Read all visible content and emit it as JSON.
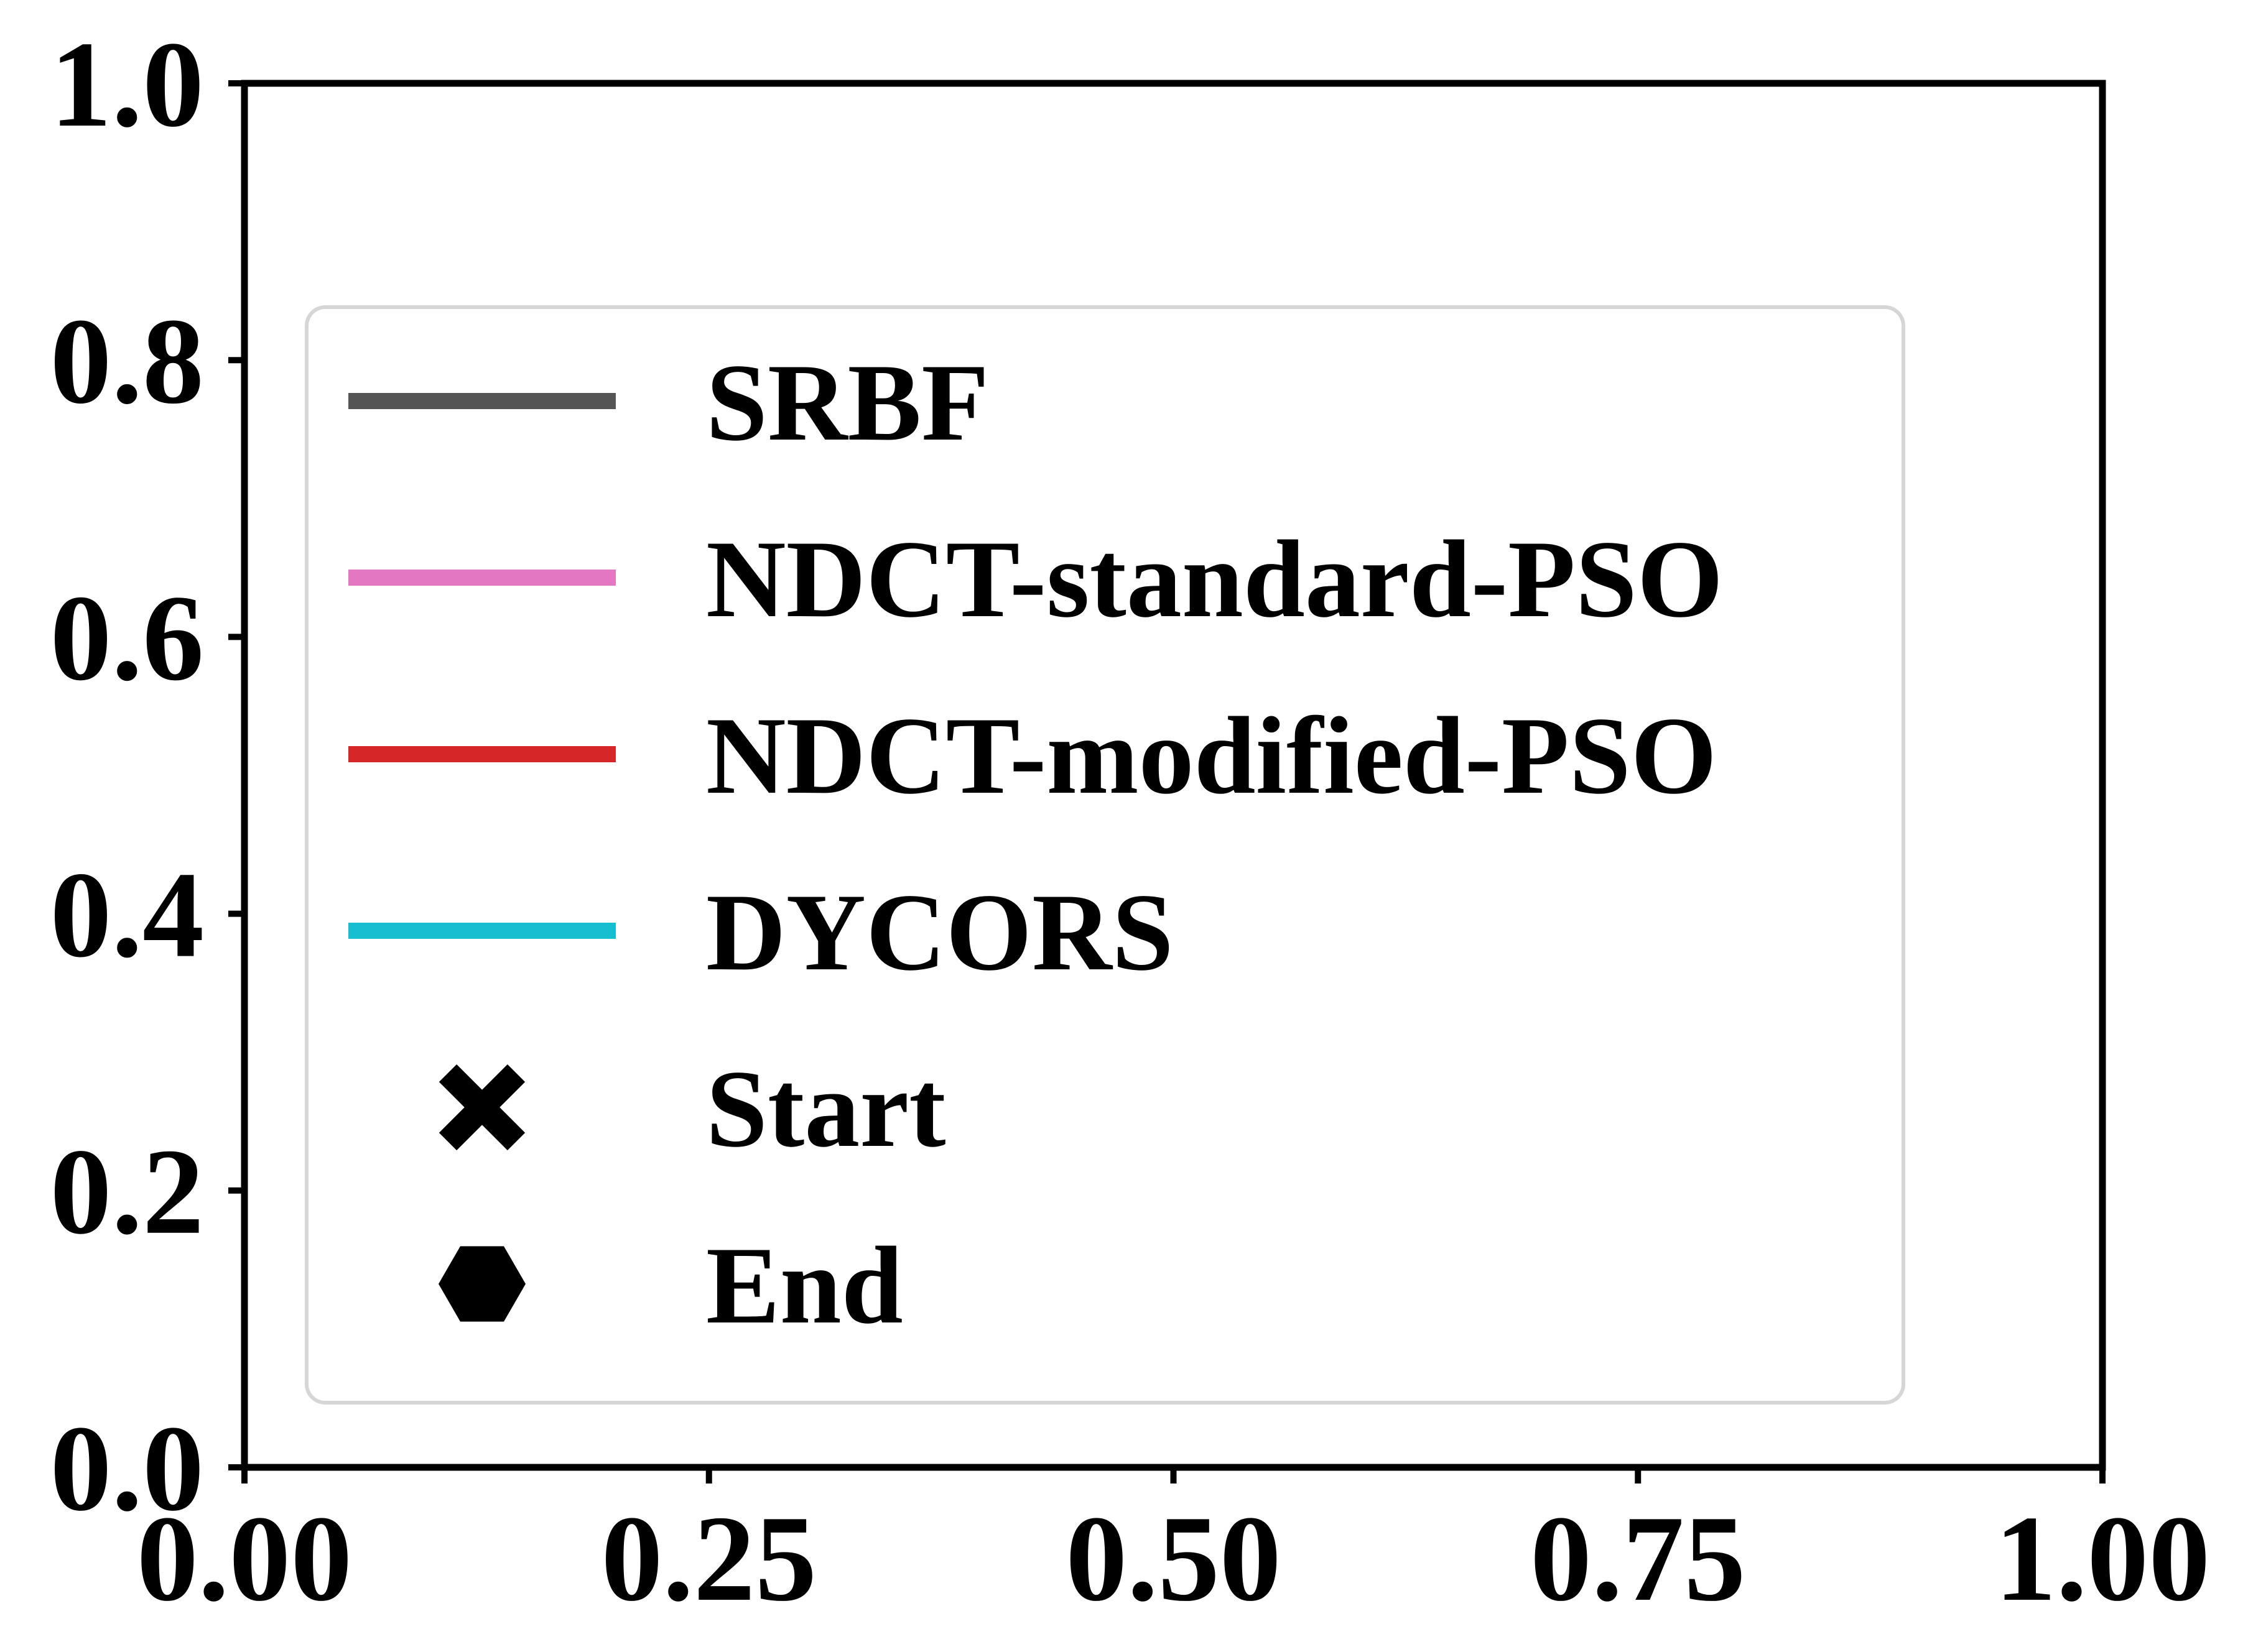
{
  "chart_data": {
    "type": "line",
    "title": "",
    "xlabel": "",
    "ylabel": "",
    "xlim": [
      0.0,
      1.0
    ],
    "ylim": [
      0.0,
      1.0
    ],
    "x_ticks": [
      "0.00",
      "0.25",
      "0.50",
      "0.75",
      "1.00"
    ],
    "y_ticks": [
      "0.0",
      "0.2",
      "0.4",
      "0.6",
      "0.8",
      "1.0"
    ],
    "x_tick_values": [
      0.0,
      0.25,
      0.5,
      0.75,
      1.0
    ],
    "y_tick_values": [
      0.0,
      0.2,
      0.4,
      0.6,
      0.8,
      1.0
    ],
    "grid": false,
    "legend_position": "center",
    "series": [
      {
        "name": "SRBF",
        "color": "#555555",
        "x": [],
        "y": []
      },
      {
        "name": "NDCT-standard-PSO",
        "color": "#e377c2",
        "x": [],
        "y": []
      },
      {
        "name": "NDCT-modified-PSO",
        "color": "#d62728",
        "x": [],
        "y": []
      },
      {
        "name": "DYCORS",
        "color": "#17becf",
        "x": [],
        "y": []
      }
    ],
    "markers": [
      {
        "name": "Start",
        "icon": "x-marker-icon",
        "color": "#000000"
      },
      {
        "name": "End",
        "icon": "hexagon-marker-icon",
        "color": "#000000"
      }
    ]
  }
}
